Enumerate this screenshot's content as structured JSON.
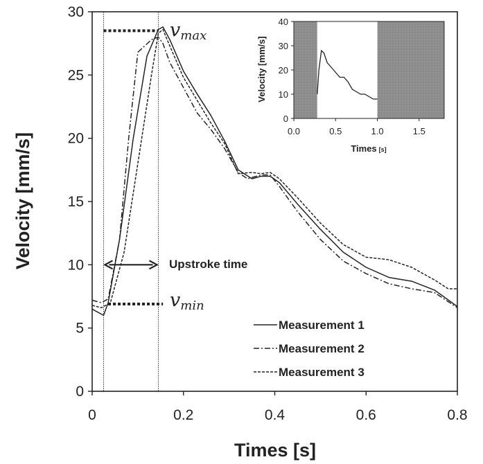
{
  "chart_data": [
    {
      "type": "line",
      "title": "",
      "xlabel": "Times [s]",
      "ylabel": "Velocity [mm/s]",
      "xlim": [
        0,
        0.8
      ],
      "ylim": [
        0,
        30
      ],
      "xticks": [
        0,
        0.2,
        0.4,
        0.6,
        0.8
      ],
      "xtick_labels": [
        "0",
        "0.2",
        "0.4",
        "0.6",
        "0.8"
      ],
      "yticks": [
        0,
        5,
        10,
        15,
        20,
        25,
        30
      ],
      "ytick_labels": [
        "0",
        "5",
        "10",
        "15",
        "20",
        "25",
        "30"
      ],
      "grid": false,
      "legend_position": "bottom-right",
      "series": [
        {
          "name": "Measurement 1",
          "style": "solid",
          "x": [
            0,
            0.025,
            0.035,
            0.06,
            0.09,
            0.12,
            0.145,
            0.155,
            0.17,
            0.2,
            0.23,
            0.26,
            0.29,
            0.32,
            0.35,
            0.37,
            0.39,
            0.41,
            0.45,
            0.5,
            0.55,
            0.6,
            0.65,
            0.7,
            0.75,
            0.8
          ],
          "y": [
            6.5,
            6.0,
            7.0,
            12.0,
            20.0,
            26.5,
            28.6,
            28.8,
            27.8,
            25.3,
            23.5,
            21.8,
            19.8,
            17.5,
            16.8,
            17.0,
            17.0,
            16.5,
            14.8,
            12.8,
            11.0,
            9.8,
            9.0,
            8.7,
            8.0,
            6.7
          ]
        },
        {
          "name": "Measurement 2",
          "style": "dashdot",
          "x": [
            0,
            0.02,
            0.035,
            0.06,
            0.08,
            0.1,
            0.115,
            0.13,
            0.145,
            0.155,
            0.17,
            0.2,
            0.23,
            0.26,
            0.29,
            0.32,
            0.34,
            0.37,
            0.39,
            0.41,
            0.45,
            0.5,
            0.55,
            0.6,
            0.65,
            0.7,
            0.75,
            0.8
          ],
          "y": [
            7.2,
            7.0,
            7.3,
            12.0,
            20.0,
            26.8,
            27.3,
            27.8,
            28.0,
            27.5,
            26.0,
            24.0,
            22.0,
            20.7,
            19.2,
            17.3,
            16.8,
            17.1,
            17.1,
            16.2,
            14.2,
            12.0,
            10.3,
            9.3,
            8.5,
            8.1,
            7.8,
            6.6
          ]
        },
        {
          "name": "Measurement 3",
          "style": "dashed",
          "x": [
            0,
            0.02,
            0.04,
            0.07,
            0.1,
            0.13,
            0.145,
            0.155,
            0.17,
            0.2,
            0.23,
            0.26,
            0.29,
            0.32,
            0.35,
            0.37,
            0.39,
            0.41,
            0.45,
            0.5,
            0.55,
            0.6,
            0.65,
            0.7,
            0.75,
            0.78,
            0.8
          ],
          "y": [
            6.8,
            6.6,
            7.0,
            11.0,
            18.0,
            25.0,
            28.3,
            28.6,
            27.3,
            24.8,
            23.0,
            21.2,
            19.6,
            17.2,
            17.3,
            17.2,
            17.3,
            16.8,
            15.3,
            13.3,
            11.6,
            10.6,
            10.4,
            9.8,
            8.8,
            8.1,
            8.1
          ]
        }
      ],
      "annotations": {
        "vmax": {
          "symbol": "v",
          "subscript": "max",
          "value": 28.5,
          "x_range": [
            0.025,
            0.145
          ]
        },
        "vmin": {
          "symbol": "v",
          "subscript": "min",
          "value": 6.9,
          "x_range": [
            0.035,
            0.155
          ]
        },
        "upstroke": {
          "label": "Upstroke time",
          "y": 10,
          "x_range": [
            0.025,
            0.145
          ]
        },
        "vlines_x": [
          0.025,
          0.145
        ]
      }
    },
    {
      "type": "line",
      "title": "",
      "xlabel": "Times",
      "xlabel_unit": "[s]",
      "ylabel": "Velocity [mm/s]",
      "xlim": [
        0,
        1.8
      ],
      "ylim": [
        0,
        40
      ],
      "xticks": [
        0,
        0.5,
        1,
        1.5
      ],
      "xtick_labels": [
        "0.0",
        "0.5",
        "1.0",
        "1.5"
      ],
      "yticks": [
        0,
        10,
        20,
        30,
        40
      ],
      "ytick_labels": [
        "0",
        "10",
        "20",
        "30",
        "40"
      ],
      "grid": false,
      "shaded_regions_x": [
        [
          0,
          0.28
        ],
        [
          1.0,
          1.8
        ]
      ],
      "series": [
        {
          "name": "",
          "style": "solid",
          "x": [
            0.28,
            0.3,
            0.33,
            0.36,
            0.4,
            0.45,
            0.5,
            0.55,
            0.6,
            0.65,
            0.7,
            0.75,
            0.8,
            0.85,
            0.9,
            0.95,
            1.0
          ],
          "y": [
            10,
            20,
            28,
            27,
            23,
            21,
            19,
            17,
            17,
            15,
            12,
            11,
            10,
            10,
            9,
            8,
            8
          ]
        }
      ]
    }
  ]
}
